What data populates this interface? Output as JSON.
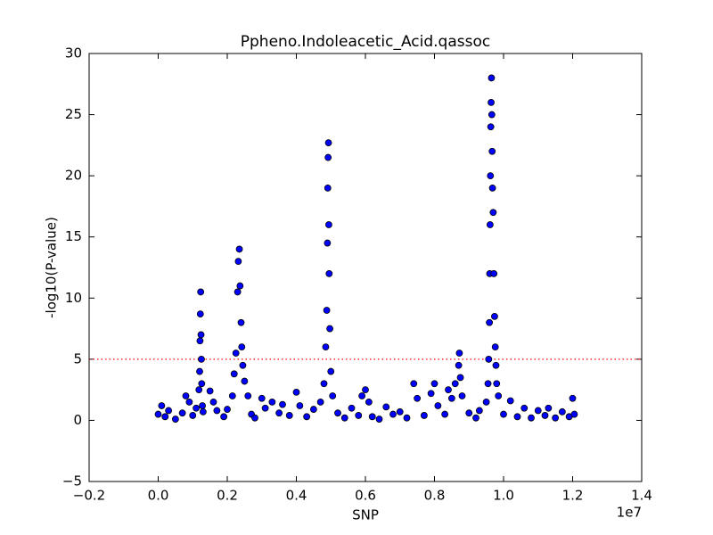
{
  "chart_data": {
    "type": "scatter",
    "title": "Ppheno.Indoleacetic_Acid.qassoc",
    "x_label": "SNP",
    "y_label": "-log10(P-value)",
    "x_offset_label": "1e7",
    "color": "#0000ff",
    "hline": {
      "value": 5,
      "color": "#ff0000"
    },
    "xlim": [
      -0.2,
      1.4
    ],
    "xticks": [
      {
        "value": -0.2,
        "label": "−0.2"
      },
      {
        "value": 0,
        "label": "0.0"
      },
      0.2,
      0.4,
      0.6,
      0.8,
      {
        "value": 1,
        "label": "1.0"
      },
      1.2,
      1.4
    ],
    "ylim": [
      -5,
      30
    ],
    "yticks": [
      {
        "value": -5,
        "label": "−5"
      },
      0,
      5,
      10,
      15,
      20,
      25,
      30
    ],
    "x": [
      0.0,
      0.01,
      0.02,
      0.03,
      0.05,
      0.07,
      0.08,
      0.09,
      0.1,
      0.11,
      0.118,
      0.12,
      0.121,
      0.122,
      0.123,
      0.124,
      0.125,
      0.126,
      0.128,
      0.13,
      0.15,
      0.16,
      0.17,
      0.19,
      0.2,
      0.215,
      0.22,
      0.225,
      0.23,
      0.232,
      0.235,
      0.237,
      0.24,
      0.242,
      0.245,
      0.25,
      0.26,
      0.27,
      0.28,
      0.3,
      0.31,
      0.33,
      0.35,
      0.36,
      0.38,
      0.4,
      0.41,
      0.43,
      0.45,
      0.47,
      0.48,
      0.485,
      0.488,
      0.49,
      0.491,
      0.492,
      0.493,
      0.494,
      0.495,
      0.497,
      0.5,
      0.505,
      0.52,
      0.54,
      0.56,
      0.58,
      0.59,
      0.6,
      0.61,
      0.62,
      0.64,
      0.66,
      0.68,
      0.7,
      0.72,
      0.74,
      0.75,
      0.77,
      0.79,
      0.8,
      0.81,
      0.83,
      0.84,
      0.85,
      0.86,
      0.87,
      0.872,
      0.875,
      0.88,
      0.9,
      0.92,
      0.93,
      0.95,
      0.955,
      0.957,
      0.959,
      0.96,
      0.961,
      0.962,
      0.963,
      0.964,
      0.965,
      0.966,
      0.967,
      0.968,
      0.97,
      0.972,
      0.974,
      0.976,
      0.978,
      0.98,
      0.985,
      1.0,
      1.02,
      1.04,
      1.06,
      1.08,
      1.1,
      1.12,
      1.13,
      1.15,
      1.17,
      1.19,
      1.2,
      1.205
    ],
    "values": [
      0.5,
      1.2,
      0.3,
      0.8,
      0.1,
      0.6,
      2.0,
      1.5,
      0.4,
      1.0,
      2.5,
      4.0,
      6.5,
      8.7,
      10.5,
      7.0,
      5.0,
      3.0,
      1.2,
      0.7,
      2.4,
      1.5,
      0.8,
      0.3,
      0.9,
      2.0,
      3.8,
      5.5,
      10.5,
      13.0,
      14.0,
      11.0,
      8.0,
      6.0,
      4.5,
      3.2,
      2.0,
      0.5,
      0.2,
      1.8,
      1.0,
      1.5,
      0.6,
      1.3,
      0.4,
      2.3,
      1.2,
      0.3,
      0.9,
      1.5,
      3.0,
      6.0,
      9.0,
      14.5,
      19.0,
      21.5,
      22.7,
      16.0,
      12.0,
      7.5,
      4.0,
      2.0,
      0.6,
      0.2,
      1.0,
      0.4,
      2.0,
      2.5,
      1.5,
      0.3,
      0.1,
      1.1,
      0.5,
      0.7,
      0.2,
      3.0,
      1.8,
      0.4,
      2.2,
      3.0,
      1.2,
      0.5,
      2.5,
      1.8,
      3.0,
      4.5,
      5.5,
      3.5,
      2.0,
      0.6,
      0.2,
      0.8,
      1.5,
      3.0,
      5.0,
      8.0,
      12.0,
      16.0,
      20.0,
      24.0,
      26.0,
      28.0,
      25.0,
      22.0,
      19.0,
      17.0,
      12.0,
      8.5,
      6.0,
      4.5,
      3.0,
      2.0,
      0.5,
      1.6,
      0.3,
      1.0,
      0.2,
      0.8,
      0.4,
      1.0,
      0.2,
      0.7,
      0.3,
      1.8,
      0.5
    ]
  }
}
